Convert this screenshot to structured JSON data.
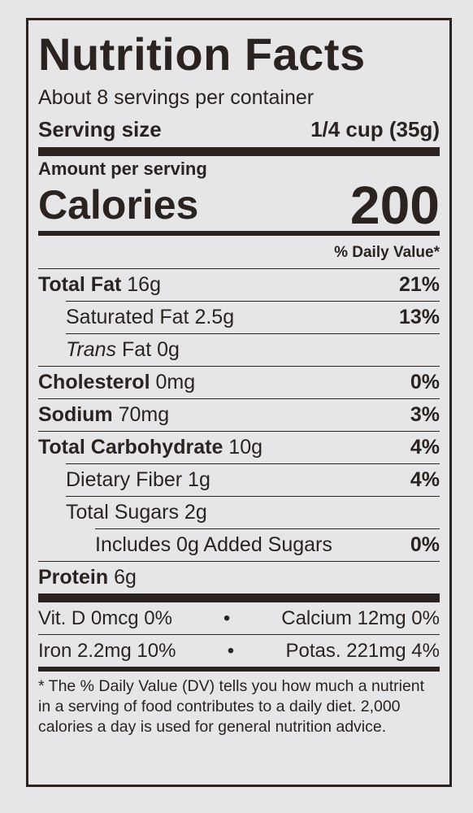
{
  "title": "Nutrition Facts",
  "servings": "About 8 servings per container",
  "serving_size": {
    "label": "Serving size",
    "value": "1/4 cup (35g)"
  },
  "amount_per_serving": "Amount per serving",
  "calories": {
    "label": "Calories",
    "value": "200"
  },
  "dv_header": "% Daily Value*",
  "nutrients": [
    {
      "name": "Total Fat",
      "amount": "16g",
      "dv": "21%"
    },
    {
      "name": "Saturated Fat",
      "amount": "2.5g",
      "dv": "13%"
    },
    {
      "name_italic": "Trans",
      "name": "Fat",
      "amount": "0g"
    },
    {
      "name": "Cholesterol",
      "amount": "0mg",
      "dv": "0%"
    },
    {
      "name": "Sodium",
      "amount": "70mg",
      "dv": "3%"
    },
    {
      "name": "Total Carbohydrate",
      "amount": "10g",
      "dv": "4%"
    },
    {
      "name": "Dietary Fiber",
      "amount": "1g",
      "dv": "4%"
    },
    {
      "name": "Total Sugars",
      "amount": "2g"
    },
    {
      "name": "Includes 0g Added Sugars",
      "dv": "0%"
    },
    {
      "name": "Protein",
      "amount": "6g"
    }
  ],
  "vitamins": [
    [
      "Vit. D 0mcg 0%",
      "Calcium 12mg 0%"
    ],
    [
      "Iron 2.2mg 10%",
      "Potas. 221mg 4%"
    ]
  ],
  "separator": "•",
  "footnote": "* The % Daily Value (DV) tells you how much a nutrient in a serving of food contributes to a daily diet. 2,000 calories a day is used for general nutrition advice."
}
